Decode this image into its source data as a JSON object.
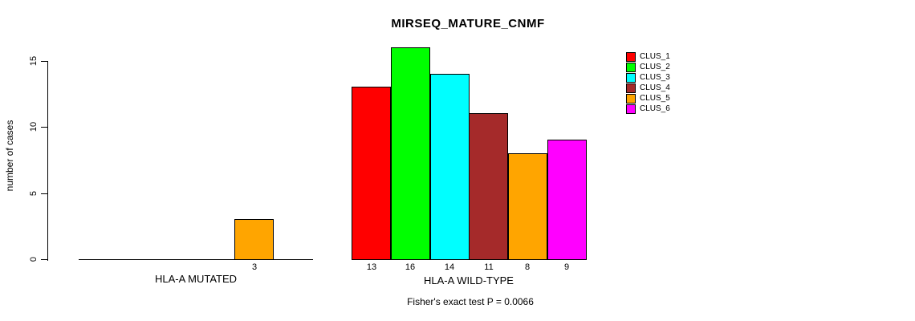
{
  "chart_data": {
    "type": "bar",
    "title": "MIRSEQ_MATURE_CNMF",
    "ylabel": "number of cases",
    "caption": "Fisher's exact test P = 0.0066",
    "y_ticks": [
      0,
      5,
      10,
      15
    ],
    "ylim": [
      0,
      16
    ],
    "grid": false,
    "legend_position": "top-right",
    "categories": [
      "CLUS_1",
      "CLUS_2",
      "CLUS_3",
      "CLUS_4",
      "CLUS_5",
      "CLUS_6"
    ],
    "colors": [
      "#FF0000",
      "#00FF00",
      "#00FFFF",
      "#A52A2A",
      "#FFA500",
      "#FF00FF"
    ],
    "groups": [
      {
        "label": "HLA-A MUTATED",
        "values": [
          0,
          0,
          0,
          0,
          3,
          0
        ]
      },
      {
        "label": "HLA-A WILD-TYPE",
        "values": [
          13,
          16,
          14,
          11,
          8,
          9
        ]
      }
    ]
  }
}
